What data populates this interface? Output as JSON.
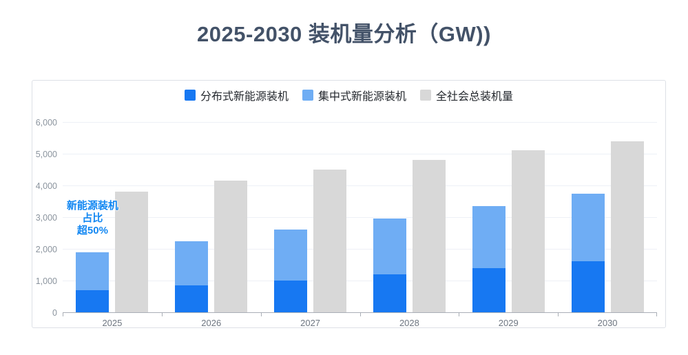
{
  "chart_data": {
    "type": "bar",
    "title": "2025-2030 装机量分析（GW))",
    "categories": [
      "2025",
      "2026",
      "2027",
      "2028",
      "2029",
      "2030"
    ],
    "series": [
      {
        "name": "分布式新能源装机",
        "stack": "new-energy",
        "color": "#1778F2",
        "values": [
          700,
          850,
          1000,
          1200,
          1400,
          1600
        ]
      },
      {
        "name": "集中式新能源装机",
        "stack": "new-energy",
        "color": "#6FADF4",
        "values": [
          1200,
          1400,
          1600,
          1750,
          1950,
          2150
        ]
      },
      {
        "name": "全社会总装机量",
        "stack": null,
        "color": "#D8D8D8",
        "values": [
          3800,
          4150,
          4500,
          4800,
          5100,
          5400
        ]
      }
    ],
    "ylim": [
      0,
      6000
    ],
    "yticks": [
      0,
      1000,
      2000,
      3000,
      4000,
      5000,
      6000
    ],
    "ytick_labels": [
      "0",
      "1,000",
      "2,000",
      "3,000",
      "4,000",
      "5,000",
      "6,000"
    ],
    "grid": true,
    "legend_position": "top",
    "annotation": {
      "target_category": "2025",
      "lines": [
        "新能源装机",
        "占比",
        "超50%"
      ],
      "color": "#1287F2"
    }
  },
  "colors": {
    "title": "#435268",
    "axis_line": "#a9aeb6",
    "gridline": "#edf0f6",
    "ytick_label": "#8b949e",
    "xtick_label": "#6e7681",
    "legend_text": "#24282e",
    "panel_border": "#dde0e6",
    "background": "#ffffff"
  }
}
